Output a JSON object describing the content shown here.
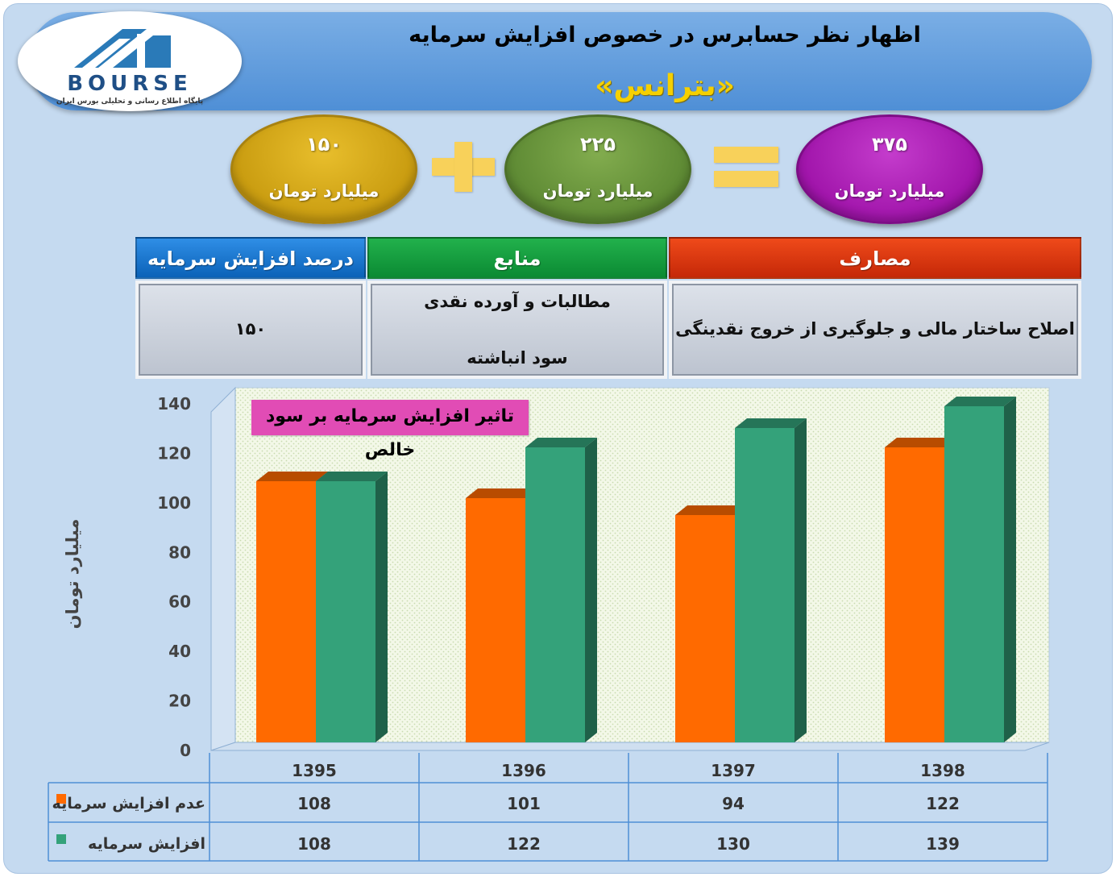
{
  "header": {
    "title": "اظهار نظر حسابرس در خصوص افزایش سرمایه",
    "company": "«بترانس»",
    "logo_text": "BOURSE",
    "logo_tagline": "پایگاه اطلاع رسانی و تحلیلی بورس ایران"
  },
  "summary": {
    "unit": "میلیارد تومان",
    "left_value": "۱۵۰",
    "middle_value": "۲۲۵",
    "right_value": "۳۷۵",
    "colors": {
      "left": "#c99c10",
      "middle": "#5e8a34",
      "right": "#a014aa",
      "operator": "#f8d15a"
    }
  },
  "info_table": {
    "headers": {
      "percent": "درصد افزایش سرمایه",
      "sources": "منابع",
      "uses": "مصارف"
    },
    "percent_value": "۱۵۰",
    "sources": [
      "مطالبات و آورده نقدی",
      "سود انباشته"
    ],
    "uses": "اصلاح ساختار مالی و جلوگیری از خروج نقدینگی"
  },
  "chart_data": {
    "type": "bar",
    "title": "تاثیر افزایش سرمایه بر سود خالص",
    "ylabel": "میلیارد تومان",
    "xlabel": "",
    "categories": [
      "1395",
      "1396",
      "1397",
      "1398"
    ],
    "ylim": [
      0,
      140
    ],
    "yticks": [
      0,
      20,
      40,
      60,
      80,
      100,
      120,
      140
    ],
    "grid": false,
    "legend": "bottom-table",
    "series": [
      {
        "name": "عدم افزایش سرمایه",
        "values": [
          108,
          101,
          94,
          122
        ],
        "color": "#ff6a00"
      },
      {
        "name": "افزایش سرمایه",
        "values": [
          108,
          122,
          130,
          139
        ],
        "color": "#34a27a"
      }
    ]
  }
}
